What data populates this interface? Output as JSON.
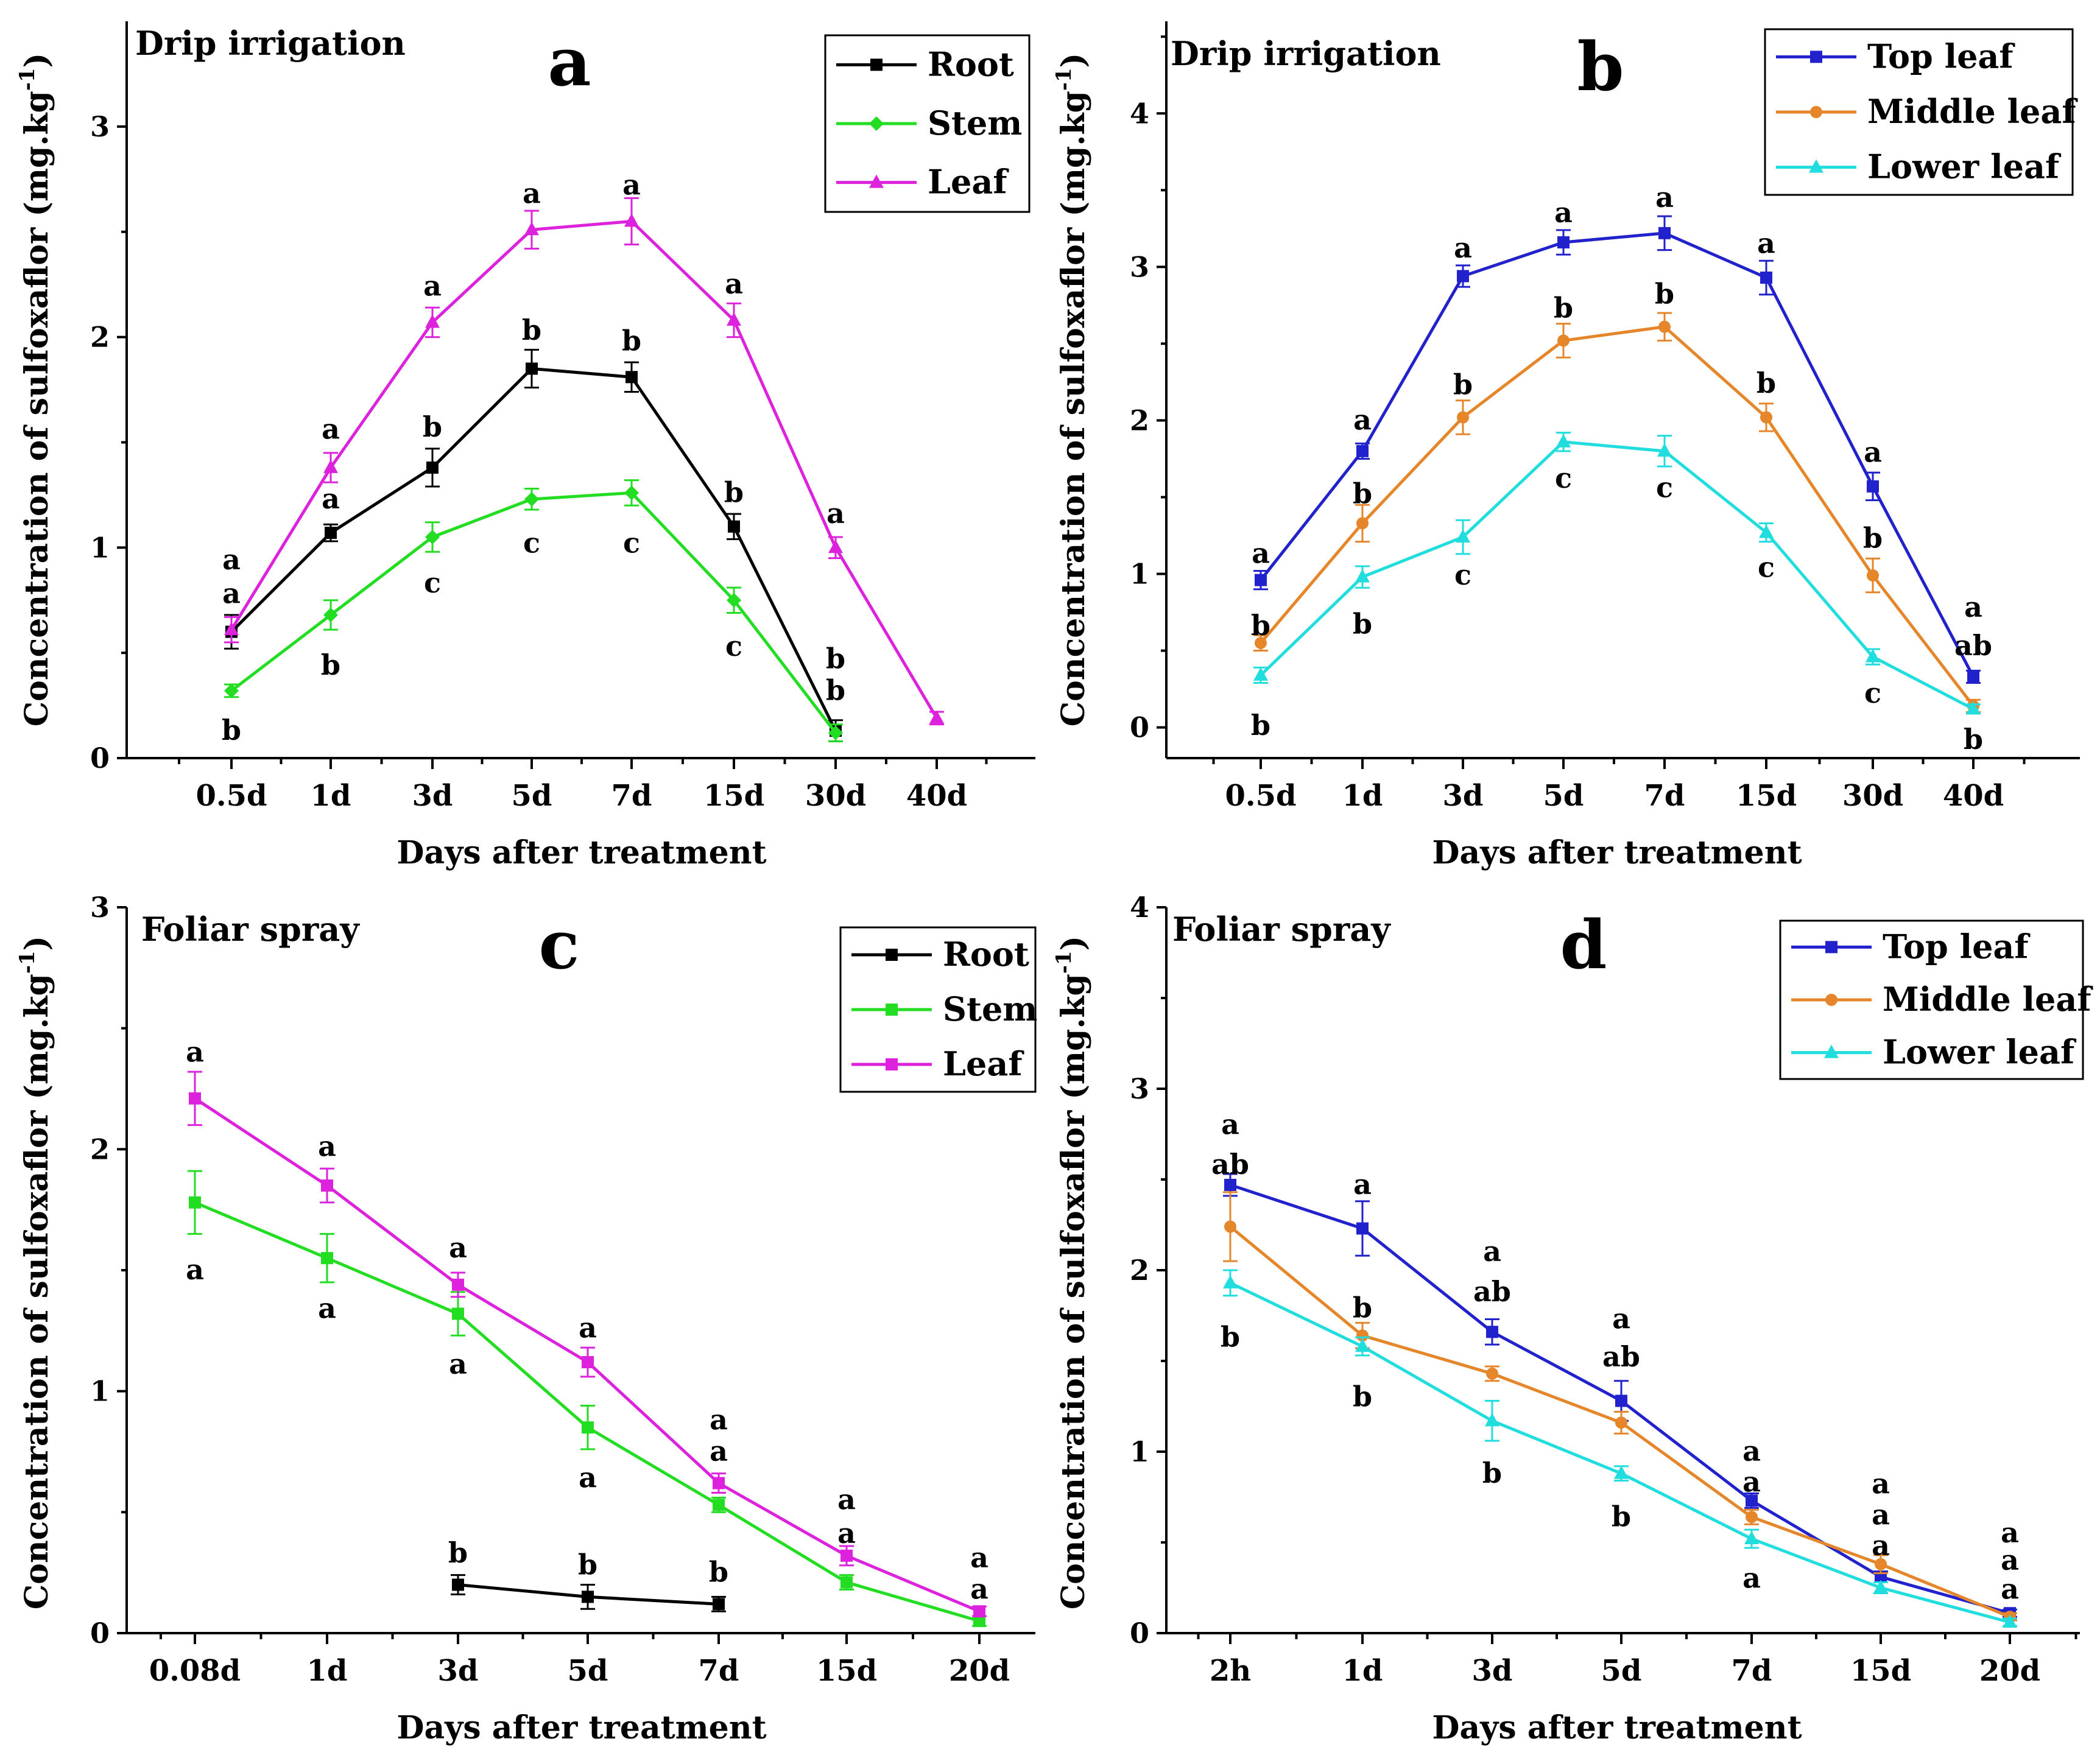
{
  "chart_data": [
    {
      "id": "a",
      "type": "line",
      "panel_label": "a",
      "condition": "Drip irrigation",
      "xlabel": "Days after treatment",
      "ylabel": "Concentration of sulfoxaflor (mg.kg",
      "ylabel_sup": "-1",
      "categories": [
        "0.5d",
        "1d",
        "3d",
        "5d",
        "7d",
        "15d",
        "30d",
        "40d"
      ],
      "ylim": [
        0,
        3.5
      ],
      "yticks": [
        0,
        1,
        2,
        3
      ],
      "legend_position": "top-right",
      "series": [
        {
          "name": "Root",
          "color": "#000000",
          "marker": "square",
          "values": [
            0.6,
            1.07,
            1.38,
            1.85,
            1.81,
            1.1,
            0.13,
            null
          ],
          "errors": [
            0.08,
            0.04,
            0.09,
            0.09,
            0.07,
            0.06,
            0.05,
            null
          ]
        },
        {
          "name": "Stem",
          "color": "#22dd22",
          "marker": "diamond",
          "values": [
            0.32,
            0.68,
            1.05,
            1.23,
            1.26,
            0.75,
            0.12,
            null
          ],
          "errors": [
            0.03,
            0.07,
            0.07,
            0.05,
            0.06,
            0.06,
            0.04,
            null
          ]
        },
        {
          "name": "Leaf",
          "color": "#dd22dd",
          "marker": "triangle",
          "values": [
            0.61,
            1.38,
            2.07,
            2.51,
            2.55,
            2.08,
            1.0,
            0.19
          ],
          "errors": [
            0.06,
            0.07,
            0.07,
            0.09,
            0.11,
            0.08,
            0.05,
            0.03
          ]
        }
      ],
      "annotations": [
        {
          "x": "0.5d",
          "y": 0.94,
          "text": "a"
        },
        {
          "x": "0.5d",
          "y": 0.78,
          "text": "a"
        },
        {
          "x": "0.5d",
          "y": 0.13,
          "text": "b"
        },
        {
          "x": "1d",
          "y": 1.56,
          "text": "a"
        },
        {
          "x": "1d",
          "y": 1.23,
          "text": "a"
        },
        {
          "x": "1d",
          "y": 0.44,
          "text": "b"
        },
        {
          "x": "3d",
          "y": 2.24,
          "text": "a"
        },
        {
          "x": "3d",
          "y": 1.57,
          "text": "b"
        },
        {
          "x": "3d",
          "y": 0.83,
          "text": "c"
        },
        {
          "x": "5d",
          "y": 2.68,
          "text": "a"
        },
        {
          "x": "5d",
          "y": 2.03,
          "text": "b"
        },
        {
          "x": "5d",
          "y": 1.02,
          "text": "c"
        },
        {
          "x": "7d",
          "y": 2.72,
          "text": "a"
        },
        {
          "x": "7d",
          "y": 1.98,
          "text": "b"
        },
        {
          "x": "7d",
          "y": 1.02,
          "text": "c"
        },
        {
          "x": "15d",
          "y": 2.25,
          "text": "a"
        },
        {
          "x": "15d",
          "y": 1.26,
          "text": "b"
        },
        {
          "x": "15d",
          "y": 0.53,
          "text": "c"
        },
        {
          "x": "30d",
          "y": 1.16,
          "text": "a"
        },
        {
          "x": "30d",
          "y": 0.47,
          "text": "b"
        },
        {
          "x": "30d",
          "y": 0.32,
          "text": "b"
        }
      ]
    },
    {
      "id": "b",
      "type": "line",
      "panel_label": "b",
      "condition": "Drip irrigation",
      "xlabel": "Days after treatment",
      "ylabel": "Concentration of sulfoxaflor (mg.kg",
      "ylabel_sup": "-1",
      "categories": [
        "0.5d",
        "1d",
        "3d",
        "5d",
        "7d",
        "15d",
        "30d",
        "40d"
      ],
      "ylim": [
        -0.2,
        4.6
      ],
      "yticks": [
        0,
        1,
        2,
        3,
        4
      ],
      "legend_position": "top-right",
      "series": [
        {
          "name": "Top leaf",
          "color": "#2222cc",
          "marker": "square",
          "values": [
            0.96,
            1.8,
            2.94,
            3.16,
            3.22,
            2.93,
            1.57,
            0.33
          ],
          "errors": [
            0.06,
            0.05,
            0.07,
            0.08,
            0.11,
            0.11,
            0.09,
            0.04
          ]
        },
        {
          "name": "Middle leaf",
          "color": "#e6862a",
          "marker": "circle",
          "values": [
            0.55,
            1.33,
            2.02,
            2.52,
            2.61,
            2.02,
            0.99,
            0.14
          ],
          "errors": [
            0.05,
            0.12,
            0.11,
            0.11,
            0.09,
            0.09,
            0.11,
            0.04
          ]
        },
        {
          "name": "Lower leaf",
          "color": "#22dddd",
          "marker": "triangle",
          "values": [
            0.34,
            0.98,
            1.24,
            1.86,
            1.8,
            1.27,
            0.46,
            0.12
          ],
          "errors": [
            0.05,
            0.07,
            0.11,
            0.06,
            0.1,
            0.06,
            0.05,
            0.03
          ]
        }
      ],
      "annotations": [
        {
          "x": "0.5d",
          "y": 1.13,
          "text": "a"
        },
        {
          "x": "0.5d",
          "y": 0.66,
          "text": "b"
        },
        {
          "x": "0.5d",
          "y": 0.01,
          "text": "b"
        },
        {
          "x": "1d",
          "y": 2.0,
          "text": "a"
        },
        {
          "x": "1d",
          "y": 1.52,
          "text": "b"
        },
        {
          "x": "1d",
          "y": 0.67,
          "text": "b"
        },
        {
          "x": "3d",
          "y": 3.12,
          "text": "a"
        },
        {
          "x": "3d",
          "y": 2.23,
          "text": "b"
        },
        {
          "x": "3d",
          "y": 0.99,
          "text": "c"
        },
        {
          "x": "5d",
          "y": 3.35,
          "text": "a"
        },
        {
          "x": "5d",
          "y": 2.73,
          "text": "b"
        },
        {
          "x": "5d",
          "y": 1.62,
          "text": "c"
        },
        {
          "x": "7d",
          "y": 3.45,
          "text": "a"
        },
        {
          "x": "7d",
          "y": 2.82,
          "text": "b"
        },
        {
          "x": "7d",
          "y": 1.56,
          "text": "c"
        },
        {
          "x": "15d",
          "y": 3.15,
          "text": "a"
        },
        {
          "x": "15d",
          "y": 2.24,
          "text": "b"
        },
        {
          "x": "15d",
          "y": 1.04,
          "text": "c"
        },
        {
          "x": "30d",
          "y": 1.79,
          "text": "a"
        },
        {
          "x": "30d",
          "y": 1.23,
          "text": "b"
        },
        {
          "x": "30d",
          "y": 0.22,
          "text": "c"
        },
        {
          "x": "40d",
          "y": 0.78,
          "text": "a"
        },
        {
          "x": "40d",
          "y": 0.53,
          "text": "ab"
        },
        {
          "x": "40d",
          "y": -0.08,
          "text": "b"
        }
      ]
    },
    {
      "id": "c",
      "type": "line",
      "panel_label": "c",
      "condition": "Foliar spray",
      "xlabel": "Days after treatment",
      "ylabel": "Concentration of sulfoxaflor (mg.kg",
      "ylabel_sup": "-1",
      "categories": [
        "0.08d",
        "1d",
        "3d",
        "5d",
        "7d",
        "15d",
        "20d"
      ],
      "ylim": [
        0,
        3
      ],
      "yticks": [
        0,
        1,
        2,
        3
      ],
      "legend_position": "top-right",
      "series": [
        {
          "name": "Root",
          "color": "#000000",
          "marker": "square",
          "values": [
            null,
            null,
            0.2,
            0.15,
            0.12,
            null,
            null
          ],
          "errors": [
            null,
            null,
            0.04,
            0.05,
            0.03,
            null,
            null
          ]
        },
        {
          "name": "Stem",
          "color": "#22dd22",
          "marker": "square",
          "values": [
            1.78,
            1.55,
            1.32,
            0.85,
            0.53,
            0.21,
            0.05
          ],
          "errors": [
            0.13,
            0.1,
            0.09,
            0.09,
            0.03,
            0.03,
            0.02
          ]
        },
        {
          "name": "Leaf",
          "color": "#dd22dd",
          "marker": "square",
          "values": [
            2.21,
            1.85,
            1.44,
            1.12,
            0.62,
            0.32,
            0.09
          ],
          "errors": [
            0.11,
            0.07,
            0.05,
            0.06,
            0.04,
            0.04,
            0.02
          ]
        }
      ],
      "annotations": [
        {
          "x": "0.08d",
          "y": 2.4,
          "text": "a"
        },
        {
          "x": "0.08d",
          "y": 1.5,
          "text": "a"
        },
        {
          "x": "1d",
          "y": 2.01,
          "text": "a"
        },
        {
          "x": "1d",
          "y": 1.34,
          "text": "a"
        },
        {
          "x": "3d",
          "y": 1.59,
          "text": "a"
        },
        {
          "x": "3d",
          "y": 1.11,
          "text": "a"
        },
        {
          "x": "3d",
          "y": 0.33,
          "text": "b"
        },
        {
          "x": "5d",
          "y": 1.26,
          "text": "a"
        },
        {
          "x": "5d",
          "y": 0.64,
          "text": "a"
        },
        {
          "x": "5d",
          "y": 0.28,
          "text": "b"
        },
        {
          "x": "7d",
          "y": 0.88,
          "text": "a"
        },
        {
          "x": "7d",
          "y": 0.75,
          "text": "a"
        },
        {
          "x": "7d",
          "y": 0.25,
          "text": "b"
        },
        {
          "x": "15d",
          "y": 0.55,
          "text": "a"
        },
        {
          "x": "15d",
          "y": 0.41,
          "text": "a"
        },
        {
          "x": "20d",
          "y": 0.31,
          "text": "a"
        },
        {
          "x": "20d",
          "y": 0.18,
          "text": "a"
        }
      ]
    },
    {
      "id": "d",
      "type": "line",
      "panel_label": "d",
      "condition": "Foliar spray",
      "xlabel": "Days after treatment",
      "ylabel": "Concentration of sulfoxaflor (mg.kg",
      "ylabel_sup": "-1",
      "categories": [
        "2h",
        "1d",
        "3d",
        "5d",
        "7d",
        "15d",
        "20d"
      ],
      "ylim": [
        0,
        4
      ],
      "yticks": [
        0,
        1,
        2,
        3,
        4
      ],
      "legend_position": "top-right",
      "series": [
        {
          "name": "Top leaf",
          "color": "#2222cc",
          "marker": "square",
          "values": [
            2.47,
            2.23,
            1.66,
            1.28,
            0.73,
            0.31,
            0.11
          ],
          "errors": [
            0.06,
            0.15,
            0.07,
            0.11,
            0.04,
            0.03,
            0.02
          ]
        },
        {
          "name": "Middle leaf",
          "color": "#e6862a",
          "marker": "circle",
          "values": [
            2.24,
            1.64,
            1.43,
            1.16,
            0.64,
            0.38,
            0.09
          ],
          "errors": [
            0.19,
            0.07,
            0.04,
            0.06,
            0.04,
            0.05,
            0.02
          ]
        },
        {
          "name": "Lower leaf",
          "color": "#22dddd",
          "marker": "triangle",
          "values": [
            1.93,
            1.58,
            1.17,
            0.88,
            0.52,
            0.25,
            0.06
          ],
          "errors": [
            0.07,
            0.05,
            0.11,
            0.04,
            0.05,
            0.03,
            0.02
          ]
        }
      ],
      "annotations": [
        {
          "x": "2h",
          "y": 2.8,
          "text": "a"
        },
        {
          "x": "2h",
          "y": 2.58,
          "text": "ab"
        },
        {
          "x": "2h",
          "y": 1.63,
          "text": "b"
        },
        {
          "x": "1d",
          "y": 2.47,
          "text": "a"
        },
        {
          "x": "1d",
          "y": 1.79,
          "text": "b"
        },
        {
          "x": "1d",
          "y": 1.3,
          "text": "b"
        },
        {
          "x": "3d",
          "y": 2.1,
          "text": "a"
        },
        {
          "x": "3d",
          "y": 1.88,
          "text": "ab"
        },
        {
          "x": "3d",
          "y": 0.88,
          "text": "b"
        },
        {
          "x": "5d",
          "y": 1.73,
          "text": "a"
        },
        {
          "x": "5d",
          "y": 1.52,
          "text": "ab"
        },
        {
          "x": "5d",
          "y": 0.64,
          "text": "b"
        },
        {
          "x": "7d",
          "y": 1.0,
          "text": "a"
        },
        {
          "x": "7d",
          "y": 0.83,
          "text": "a"
        },
        {
          "x": "7d",
          "y": 0.3,
          "text": "a"
        },
        {
          "x": "15d",
          "y": 0.82,
          "text": "a"
        },
        {
          "x": "15d",
          "y": 0.65,
          "text": "a"
        },
        {
          "x": "15d",
          "y": 0.48,
          "text": "a"
        },
        {
          "x": "20d",
          "y": 0.55,
          "text": "a"
        },
        {
          "x": "20d",
          "y": 0.4,
          "text": "a"
        },
        {
          "x": "20d",
          "y": 0.24,
          "text": "a"
        }
      ]
    }
  ]
}
